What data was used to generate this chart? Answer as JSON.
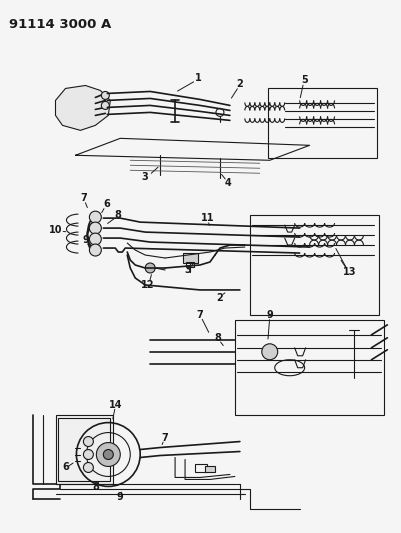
{
  "title": "91114 3000 A",
  "bg_color": "#f5f5f5",
  "line_color": "#1a1a1a",
  "title_fontsize": 9.5,
  "fig_width": 4.01,
  "fig_height": 5.33,
  "dpi": 100
}
